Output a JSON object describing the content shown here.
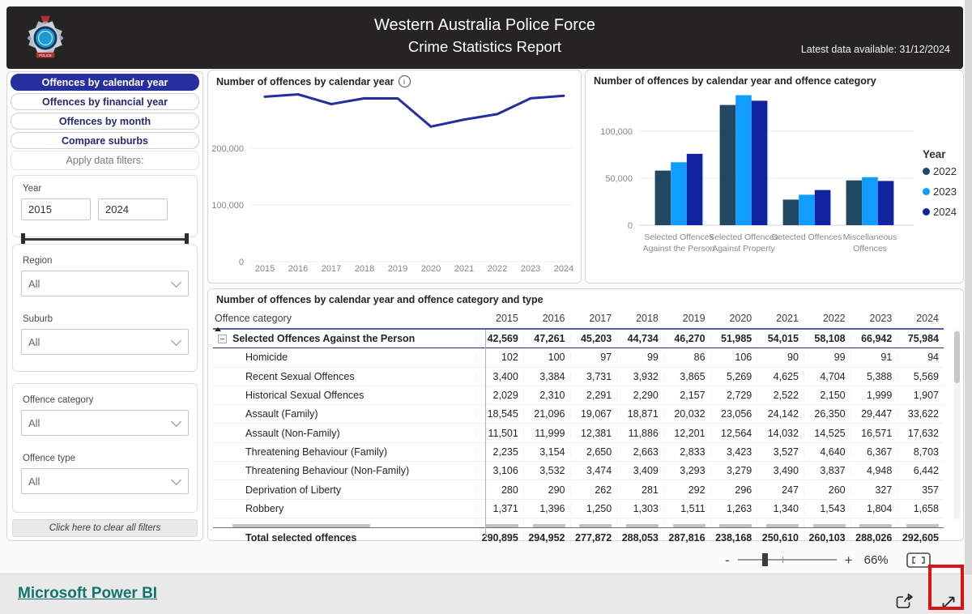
{
  "header": {
    "title_line1": "Western Australia Police Force",
    "title_line2": "Crime Statistics Report",
    "latest_data": "Latest data available: 31/12/2024"
  },
  "sidebar": {
    "nav": [
      {
        "label": "Offences by calendar year",
        "selected": true
      },
      {
        "label": "Offences by financial year",
        "selected": false
      },
      {
        "label": "Offences by month",
        "selected": false
      },
      {
        "label": "Compare suburbs",
        "selected": false
      }
    ],
    "filters_heading": "Apply data filters:",
    "year_filter": {
      "label": "Year",
      "from": "2015",
      "to": "2024"
    },
    "region_filter": {
      "label": "Region",
      "value": "All"
    },
    "suburb_filter": {
      "label": "Suburb",
      "value": "All"
    },
    "offence_category_filter": {
      "label": "Offence category",
      "value": "All"
    },
    "offence_type_filter": {
      "label": "Offence type",
      "value": "All"
    },
    "clear_filters_label": "Click here to clear all filters"
  },
  "chart_data": [
    {
      "type": "line",
      "title": "Number of offences by calendar year",
      "x": [
        2015,
        2016,
        2017,
        2018,
        2019,
        2020,
        2021,
        2022,
        2023,
        2024
      ],
      "values": [
        290895,
        294952,
        277872,
        288053,
        287816,
        238168,
        250610,
        260103,
        288026,
        292605
      ],
      "yticks": [
        0,
        100000,
        200000
      ],
      "ylim": [
        0,
        300000
      ],
      "line_color": "#252e9e",
      "grid": true
    },
    {
      "type": "bar",
      "title": "Number of offences by calendar year and offence category",
      "categories": [
        "Selected Offences Against the Person",
        "Selected Offences Against Property",
        "Detected Offences",
        "Miscellaneous Offences"
      ],
      "series": [
        {
          "name": "2022",
          "color": "#204862",
          "values": [
            58108,
            127900,
            27200,
            47700
          ]
        },
        {
          "name": "2023",
          "color": "#119dff",
          "values": [
            66942,
            138400,
            32400,
            51100
          ]
        },
        {
          "name": "2024",
          "color": "#12239e",
          "values": [
            75984,
            132400,
            37400,
            47100
          ]
        }
      ],
      "legend_title": "Year",
      "legend_position": "right",
      "yticks": [
        0,
        50000,
        100000
      ],
      "ylim": [
        0,
        145000
      ]
    },
    {
      "type": "table",
      "title": "Number of offences by calendar year and offence category and type",
      "row_header": "Offence category",
      "columns": [
        "2015",
        "2016",
        "2017",
        "2018",
        "2019",
        "2020",
        "2021",
        "2022",
        "2023",
        "2024"
      ],
      "group_row": {
        "label": "Selected Offences Against the Person",
        "values": [
          "42,569",
          "47,261",
          "45,203",
          "44,734",
          "46,270",
          "51,985",
          "54,015",
          "58,108",
          "66,942",
          "75,984"
        ]
      },
      "rows": [
        {
          "label": "Homicide",
          "values": [
            "102",
            "100",
            "97",
            "99",
            "86",
            "106",
            "90",
            "99",
            "91",
            "94"
          ]
        },
        {
          "label": "Recent Sexual Offences",
          "values": [
            "3,400",
            "3,384",
            "3,731",
            "3,932",
            "3,865",
            "5,269",
            "4,625",
            "4,704",
            "5,388",
            "5,569"
          ]
        },
        {
          "label": "Historical Sexual Offences",
          "values": [
            "2,029",
            "2,310",
            "2,291",
            "2,290",
            "2,157",
            "2,729",
            "2,522",
            "2,150",
            "1,999",
            "1,907"
          ]
        },
        {
          "label": "Assault (Family)",
          "values": [
            "18,545",
            "21,096",
            "19,067",
            "18,871",
            "20,032",
            "23,056",
            "24,142",
            "26,350",
            "29,447",
            "33,622"
          ]
        },
        {
          "label": "Assault (Non-Family)",
          "values": [
            "11,501",
            "11,999",
            "12,381",
            "11,886",
            "12,201",
            "12,564",
            "14,032",
            "14,525",
            "16,571",
            "17,632"
          ]
        },
        {
          "label": "Threatening Behaviour (Family)",
          "values": [
            "2,235",
            "3,154",
            "2,650",
            "2,663",
            "2,833",
            "3,423",
            "3,527",
            "4,640",
            "6,367",
            "8,703"
          ]
        },
        {
          "label": "Threatening Behaviour (Non-Family)",
          "values": [
            "3,106",
            "3,532",
            "3,474",
            "3,409",
            "3,293",
            "3,279",
            "3,490",
            "3,837",
            "4,948",
            "6,442"
          ]
        },
        {
          "label": "Deprivation of Liberty",
          "values": [
            "280",
            "290",
            "262",
            "281",
            "292",
            "296",
            "247",
            "260",
            "327",
            "357"
          ]
        },
        {
          "label": "Robbery",
          "values": [
            "1,371",
            "1,396",
            "1,250",
            "1,303",
            "1,511",
            "1,263",
            "1,340",
            "1,543",
            "1,804",
            "1,658"
          ]
        }
      ],
      "total_row": {
        "label": "Total selected offences",
        "values": [
          "290,895",
          "294,952",
          "277,872",
          "288,053",
          "287,816",
          "238,168",
          "250,610",
          "260,103",
          "288,026",
          "292,605"
        ]
      }
    }
  ],
  "zoom_bar": {
    "minus_label": "-",
    "plus_label": "+",
    "level": "66%"
  },
  "footer": {
    "brand": "Microsoft Power BI"
  },
  "colors": {
    "accent_navy": "#272f9e",
    "link_teal": "#12746c",
    "annotation_red": "#dd1111",
    "header_bg": "#252423"
  }
}
